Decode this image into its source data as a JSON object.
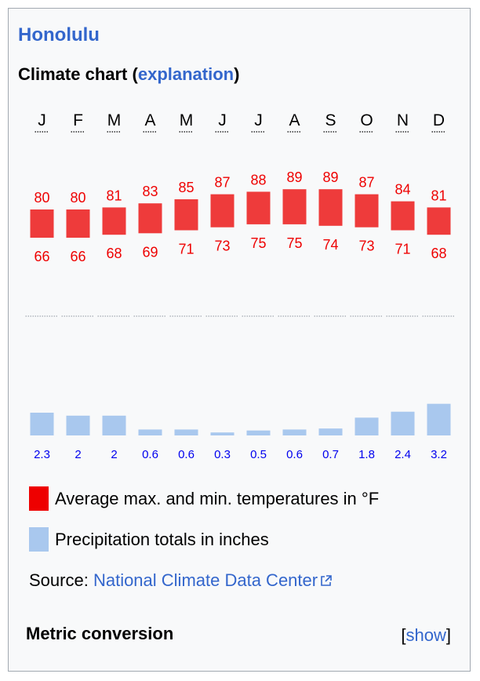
{
  "header": {
    "city": "Honolulu",
    "chart_title": "Climate chart",
    "explanation_link": "explanation"
  },
  "legend": {
    "temperature_label": "Average max. and min. temperatures in °F",
    "precip_label": "Precipitation totals in inches",
    "temperature_color": "#ee3b3b",
    "precip_color": "#a9c8ee"
  },
  "source": {
    "prefix": "Source:",
    "link": "National Climate Data Center"
  },
  "footer": {
    "metric_label": "Metric conversion",
    "show_link": "show"
  },
  "chart_data": {
    "type": "climate-chart",
    "categories": [
      "J",
      "F",
      "M",
      "A",
      "M",
      "J",
      "J",
      "A",
      "S",
      "O",
      "N",
      "D"
    ],
    "series": [
      {
        "name": "Average max. temperature (°F)",
        "values": [
          80,
          80,
          81,
          83,
          85,
          87,
          88,
          89,
          89,
          87,
          84,
          81
        ]
      },
      {
        "name": "Average min. temperature (°F)",
        "values": [
          66,
          66,
          68,
          69,
          71,
          73,
          75,
          75,
          74,
          73,
          71,
          68
        ]
      },
      {
        "name": "Precipitation (inches)",
        "values": [
          2.3,
          2,
          2,
          0.6,
          0.6,
          0.3,
          0.5,
          0.6,
          0.7,
          1.8,
          2.4,
          3.2
        ]
      }
    ],
    "precip_labels": [
      "2.3",
      "2",
      "2",
      "0.6",
      "0.6",
      "0.3",
      "0.5",
      "0.6",
      "0.7",
      "1.8",
      "2.4",
      "3.2"
    ],
    "temperature_range_f": [
      50,
      95
    ],
    "precip_range_in": [
      0,
      8
    ]
  }
}
